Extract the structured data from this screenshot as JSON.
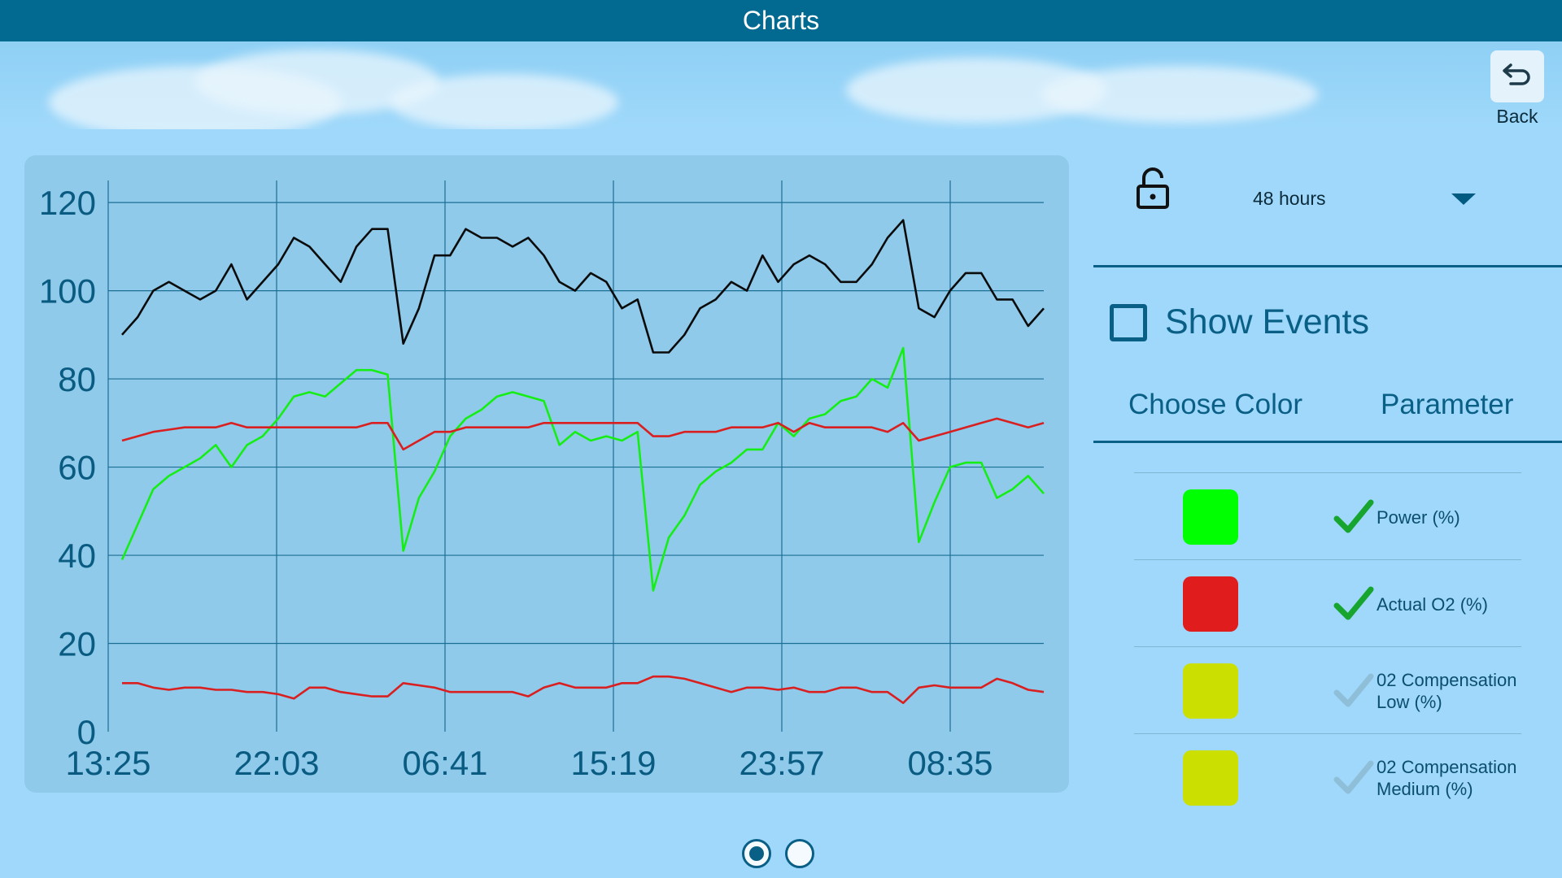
{
  "header": {
    "title": "Charts"
  },
  "back": {
    "label": "Back",
    "icon": "undo-arrow-icon"
  },
  "controls": {
    "lock_icon": "unlocked-padlock-icon",
    "period": "48 hours",
    "show_events": {
      "label": "Show Events",
      "checked": false
    },
    "column_headers": {
      "color": "Choose Color",
      "parameter": "Parameter"
    }
  },
  "parameters": [
    {
      "line1": "Power  (%)",
      "line2": "",
      "color": "#00ff00",
      "checked": true
    },
    {
      "line1": "Actual O2  (%)",
      "line2": "",
      "color": "#e01c1c",
      "checked": true
    },
    {
      "line1": "02 Compensation",
      "line2": "Low (%)",
      "color": "#cbe000",
      "checked": false
    },
    {
      "line1": "02 Compensation",
      "line2": "Medium (%)",
      "color": "#cbe000",
      "checked": false
    }
  ],
  "pager": {
    "pages": 2,
    "current": 1
  },
  "chart_data": {
    "type": "line",
    "ylim": [
      0,
      125
    ],
    "y_ticks": [
      "0",
      "20",
      "40",
      "60",
      "80",
      "100",
      "120"
    ],
    "x_ticks": [
      "13:25",
      "22:03",
      "06:41",
      "15:19",
      "23:57",
      "08:35"
    ],
    "grid": true,
    "series": [
      {
        "color": "#0b0b0b",
        "values": [
          90,
          94,
          100,
          102,
          100,
          98,
          100,
          106,
          98,
          102,
          106,
          112,
          110,
          106,
          102,
          110,
          114,
          114,
          88,
          96,
          108,
          108,
          114,
          112,
          112,
          110,
          112,
          108,
          102,
          100,
          104,
          102,
          96,
          98,
          86,
          86,
          90,
          96,
          98,
          102,
          100,
          108,
          102,
          106,
          108,
          106,
          102,
          102,
          106,
          112,
          116,
          96,
          94,
          100,
          104,
          104,
          98,
          98,
          92,
          96
        ]
      },
      {
        "color": "#15ee15",
        "values": [
          39,
          47,
          55,
          58,
          60,
          62,
          65,
          60,
          65,
          67,
          71,
          76,
          77,
          76,
          79,
          82,
          82,
          81,
          41,
          53,
          59,
          67,
          71,
          73,
          76,
          77,
          76,
          75,
          65,
          68,
          66,
          67,
          66,
          68,
          32,
          44,
          49,
          56,
          59,
          61,
          64,
          64,
          70,
          67,
          71,
          72,
          75,
          76,
          80,
          78,
          87,
          43,
          52,
          60,
          61,
          61,
          53,
          55,
          58,
          54
        ]
      },
      {
        "color": "#d91f1f",
        "values": [
          66,
          67,
          68,
          68.5,
          69,
          69,
          69,
          70,
          69,
          69,
          69,
          69,
          69,
          69,
          69,
          69,
          70,
          70,
          64,
          66,
          68,
          68,
          69,
          69,
          69,
          69,
          69,
          70,
          70,
          70,
          70,
          70,
          70,
          70,
          67,
          67,
          68,
          68,
          68,
          69,
          69,
          69,
          70,
          68,
          70,
          69,
          69,
          69,
          69,
          68,
          70,
          66,
          67,
          68,
          69,
          70,
          71,
          70,
          69,
          70
        ]
      },
      {
        "color": "#d91f1f",
        "values": [
          11,
          11,
          10,
          9.5,
          10,
          10,
          9.5,
          9.5,
          9,
          9,
          8.5,
          7.5,
          10,
          10,
          9,
          8.5,
          8,
          8,
          11,
          10.5,
          10,
          9,
          9,
          9,
          9,
          9,
          8,
          10,
          11,
          10,
          10,
          10,
          11,
          11,
          12.5,
          12.5,
          12,
          11,
          10,
          9,
          10,
          10,
          9.5,
          10,
          9,
          9,
          10,
          10,
          9,
          9,
          6.5,
          10,
          10.5,
          10,
          10,
          10,
          12,
          11,
          9.5,
          9
        ]
      }
    ]
  }
}
